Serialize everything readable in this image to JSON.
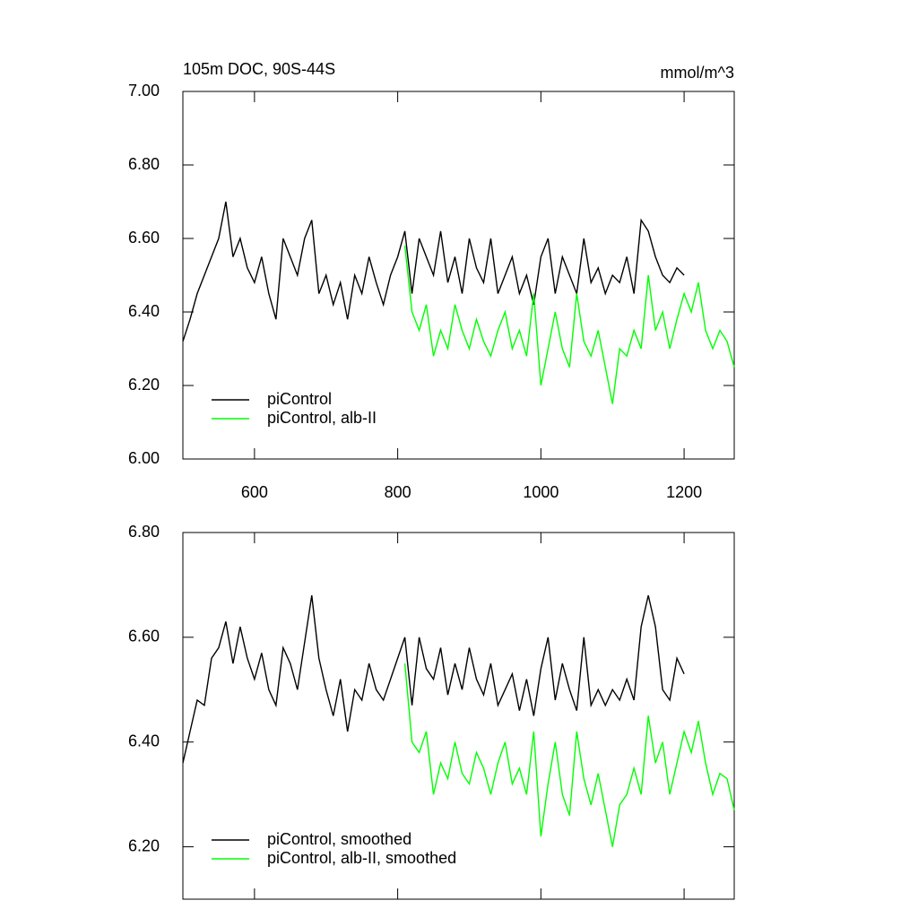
{
  "chart_data": [
    {
      "type": "line",
      "title": "105m DOC, 90S-44S",
      "units": "mmol/m^3",
      "xlim": [
        500,
        1270
      ],
      "ylim": [
        6.0,
        7.0
      ],
      "xticks": [
        600,
        800,
        1000,
        1200
      ],
      "xtick_labels": true,
      "yticks": [
        {
          "value": 6.0,
          "label": "6.00"
        },
        {
          "value": 6.2,
          "label": "6.20"
        },
        {
          "value": 6.4,
          "label": "6.40"
        },
        {
          "value": 6.6,
          "label": "6.60"
        },
        {
          "value": 6.8,
          "label": "6.80"
        },
        {
          "value": 7.0,
          "label": "7.00"
        }
      ],
      "legend": "lower left",
      "series": [
        {
          "name": "piControl",
          "color": "#000000",
          "x": [
            500,
            510,
            520,
            530,
            540,
            550,
            560,
            570,
            580,
            590,
            600,
            610,
            620,
            630,
            640,
            650,
            660,
            670,
            680,
            690,
            700,
            710,
            720,
            730,
            740,
            750,
            760,
            770,
            780,
            790,
            800,
            810,
            820,
            830,
            840,
            850,
            860,
            870,
            880,
            890,
            900,
            910,
            920,
            930,
            940,
            950,
            960,
            970,
            980,
            990,
            1000,
            1010,
            1020,
            1030,
            1040,
            1050,
            1060,
            1070,
            1080,
            1090,
            1100,
            1110,
            1120,
            1130,
            1140,
            1150,
            1160,
            1170,
            1180,
            1190,
            1200
          ],
          "values": [
            6.32,
            6.38,
            6.45,
            6.5,
            6.55,
            6.6,
            6.7,
            6.55,
            6.6,
            6.52,
            6.48,
            6.55,
            6.45,
            6.38,
            6.6,
            6.55,
            6.5,
            6.6,
            6.65,
            6.45,
            6.5,
            6.42,
            6.48,
            6.38,
            6.5,
            6.45,
            6.55,
            6.48,
            6.42,
            6.5,
            6.55,
            6.62,
            6.45,
            6.6,
            6.55,
            6.5,
            6.62,
            6.48,
            6.55,
            6.45,
            6.6,
            6.52,
            6.48,
            6.6,
            6.45,
            6.5,
            6.55,
            6.45,
            6.5,
            6.42,
            6.55,
            6.6,
            6.45,
            6.55,
            6.5,
            6.45,
            6.6,
            6.48,
            6.52,
            6.45,
            6.5,
            6.48,
            6.55,
            6.45,
            6.65,
            6.62,
            6.55,
            6.5,
            6.48,
            6.52,
            6.5
          ]
        },
        {
          "name": "piControl, alb-II",
          "color": "#00ff00",
          "x": [
            810,
            820,
            830,
            840,
            850,
            860,
            870,
            880,
            890,
            900,
            910,
            920,
            930,
            940,
            950,
            960,
            970,
            980,
            990,
            1000,
            1010,
            1020,
            1030,
            1040,
            1050,
            1060,
            1070,
            1080,
            1090,
            1100,
            1110,
            1120,
            1130,
            1140,
            1150,
            1160,
            1170,
            1180,
            1190,
            1200,
            1210,
            1220,
            1230,
            1240,
            1250,
            1260,
            1270
          ],
          "values": [
            6.58,
            6.4,
            6.35,
            6.42,
            6.28,
            6.35,
            6.3,
            6.42,
            6.35,
            6.3,
            6.38,
            6.32,
            6.28,
            6.35,
            6.4,
            6.3,
            6.35,
            6.28,
            6.45,
            6.2,
            6.3,
            6.4,
            6.3,
            6.25,
            6.45,
            6.32,
            6.28,
            6.35,
            6.25,
            6.15,
            6.3,
            6.28,
            6.35,
            6.3,
            6.5,
            6.35,
            6.4,
            6.3,
            6.38,
            6.45,
            6.4,
            6.48,
            6.35,
            6.3,
            6.35,
            6.32,
            6.25
          ]
        }
      ]
    },
    {
      "type": "line",
      "xlim": [
        500,
        1270
      ],
      "ylim": [
        6.1,
        6.8
      ],
      "xticks": [
        600,
        800,
        1000,
        1200
      ],
      "xtick_labels": false,
      "yticks": [
        {
          "value": 6.2,
          "label": "6.20"
        },
        {
          "value": 6.4,
          "label": "6.40"
        },
        {
          "value": 6.6,
          "label": "6.60"
        },
        {
          "value": 6.8,
          "label": "6.80"
        }
      ],
      "legend": "lower left",
      "series": [
        {
          "name": "piControl, smoothed",
          "color": "#000000",
          "x": [
            500,
            510,
            520,
            530,
            540,
            550,
            560,
            570,
            580,
            590,
            600,
            610,
            620,
            630,
            640,
            650,
            660,
            670,
            680,
            690,
            700,
            710,
            720,
            730,
            740,
            750,
            760,
            770,
            780,
            790,
            800,
            810,
            820,
            830,
            840,
            850,
            860,
            870,
            880,
            890,
            900,
            910,
            920,
            930,
            940,
            950,
            960,
            970,
            980,
            990,
            1000,
            1010,
            1020,
            1030,
            1040,
            1050,
            1060,
            1070,
            1080,
            1090,
            1100,
            1110,
            1120,
            1130,
            1140,
            1150,
            1160,
            1170,
            1180,
            1190,
            1200
          ],
          "values": [
            6.36,
            6.42,
            6.48,
            6.47,
            6.56,
            6.58,
            6.63,
            6.55,
            6.62,
            6.56,
            6.52,
            6.57,
            6.5,
            6.47,
            6.58,
            6.55,
            6.5,
            6.59,
            6.68,
            6.56,
            6.5,
            6.45,
            6.52,
            6.42,
            6.5,
            6.48,
            6.55,
            6.5,
            6.48,
            6.52,
            6.56,
            6.6,
            6.47,
            6.6,
            6.54,
            6.52,
            6.58,
            6.49,
            6.55,
            6.5,
            6.58,
            6.52,
            6.49,
            6.55,
            6.47,
            6.5,
            6.53,
            6.46,
            6.52,
            6.45,
            6.54,
            6.6,
            6.48,
            6.55,
            6.5,
            6.46,
            6.6,
            6.47,
            6.5,
            6.47,
            6.5,
            6.48,
            6.52,
            6.48,
            6.62,
            6.68,
            6.62,
            6.5,
            6.48,
            6.56,
            6.53
          ]
        },
        {
          "name": "piControl, alb-II, smoothed",
          "color": "#00ff00",
          "x": [
            810,
            820,
            830,
            840,
            850,
            860,
            870,
            880,
            890,
            900,
            910,
            920,
            930,
            940,
            950,
            960,
            970,
            980,
            990,
            1000,
            1010,
            1020,
            1030,
            1040,
            1050,
            1060,
            1070,
            1080,
            1090,
            1100,
            1110,
            1120,
            1130,
            1140,
            1150,
            1160,
            1170,
            1180,
            1190,
            1200,
            1210,
            1220,
            1230,
            1240,
            1250,
            1260,
            1270
          ],
          "values": [
            6.55,
            6.4,
            6.38,
            6.42,
            6.3,
            6.36,
            6.33,
            6.4,
            6.34,
            6.32,
            6.38,
            6.35,
            6.3,
            6.36,
            6.4,
            6.32,
            6.35,
            6.3,
            6.42,
            6.22,
            6.32,
            6.4,
            6.3,
            6.26,
            6.42,
            6.33,
            6.28,
            6.34,
            6.27,
            6.2,
            6.28,
            6.3,
            6.35,
            6.3,
            6.45,
            6.36,
            6.4,
            6.3,
            6.36,
            6.42,
            6.38,
            6.44,
            6.36,
            6.3,
            6.34,
            6.33,
            6.27
          ]
        }
      ]
    }
  ]
}
